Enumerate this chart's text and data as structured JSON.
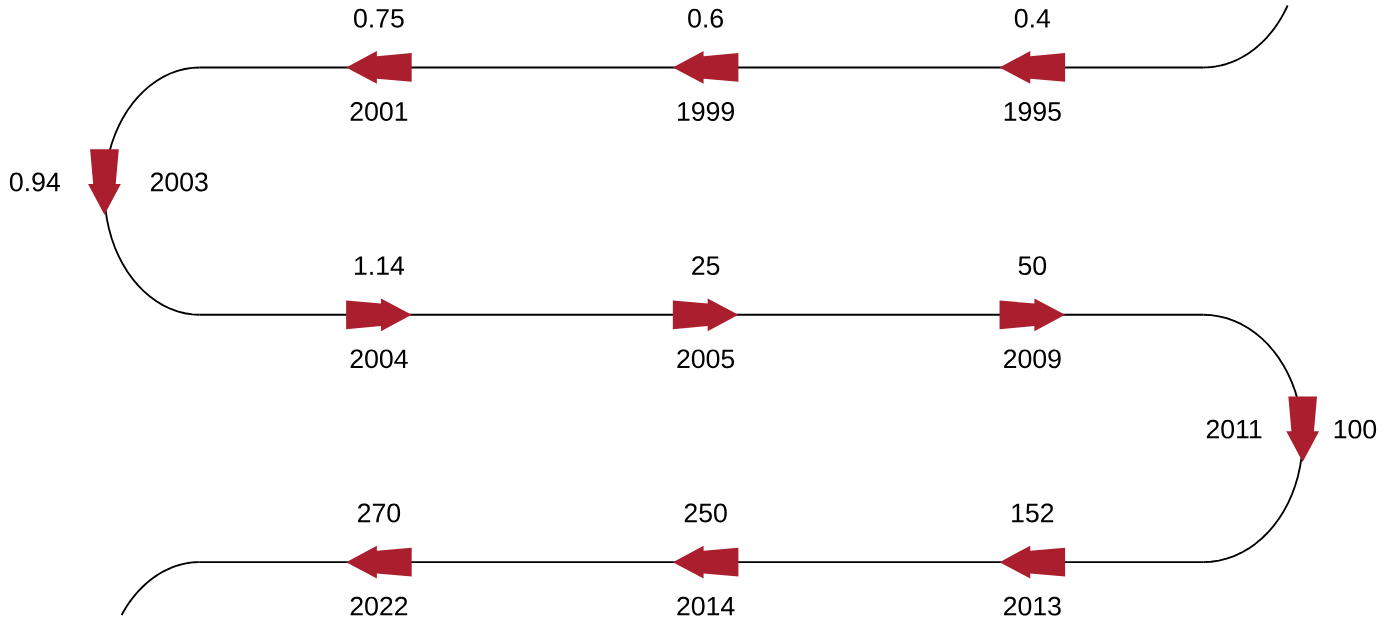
{
  "chart_data": {
    "type": "other",
    "categories": [
      "1995",
      "1999",
      "2001",
      "2003",
      "2004",
      "2005",
      "2009",
      "2011",
      "2013",
      "2014",
      "2022"
    ],
    "values": [
      0.4,
      0.6,
      0.75,
      0.94,
      1.14,
      25,
      50,
      100,
      152,
      250,
      270
    ],
    "data_labels": true,
    "color": "#ab1e2e"
  }
}
